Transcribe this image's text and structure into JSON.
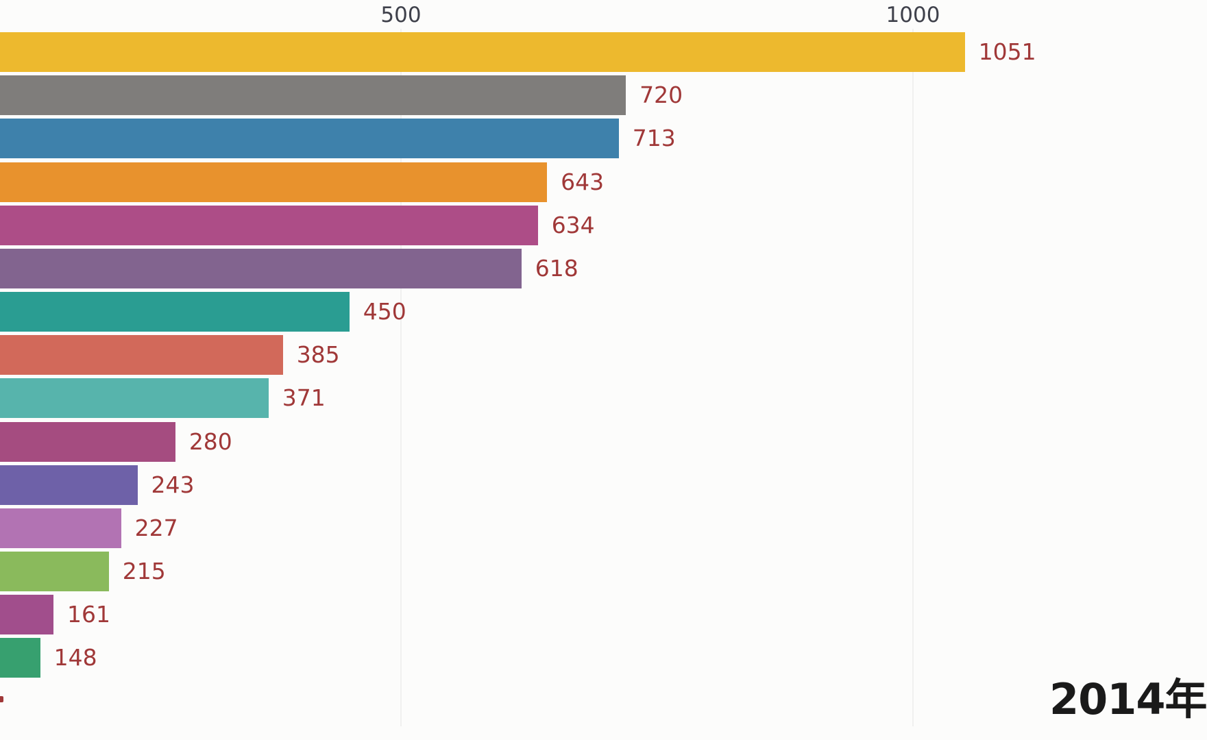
{
  "chart_data": {
    "type": "bar",
    "orientation": "horizontal",
    "style": "bar-chart-race-frame",
    "categories_visible": false,
    "values": [
      1051,
      720,
      713,
      643,
      634,
      618,
      450,
      385,
      371,
      280,
      243,
      227,
      215,
      161,
      148
    ],
    "value_labels": [
      "1051",
      "720",
      "713",
      "643",
      "634",
      "618",
      "450",
      "385",
      "371",
      "280",
      "243",
      "227",
      "215",
      "161",
      "148"
    ],
    "bar_colors": [
      "#edb92e",
      "#7f7d7b",
      "#3e81ab",
      "#e8922d",
      "#ad4d87",
      "#82648f",
      "#2a9d92",
      "#d2695a",
      "#57b4ac",
      "#a54c80",
      "#6e61a8",
      "#b273b3",
      "#8aba5c",
      "#a14e8c",
      "#37a06f"
    ],
    "axis": {
      "position": "top",
      "ticks": [
        500,
        1000
      ],
      "tick_labels": [
        "500",
        "1000"
      ],
      "tick_color": "#3f414b",
      "gridlines": true,
      "gridline_color": "#f0f0ef",
      "visible_value_range": [
        108,
        1265
      ]
    },
    "value_label_color": "#a03838",
    "background_color": "#fcfcfb",
    "year_label": "2014年",
    "year_label_color": "#1a1a1a",
    "left_edge_clipped": true
  }
}
